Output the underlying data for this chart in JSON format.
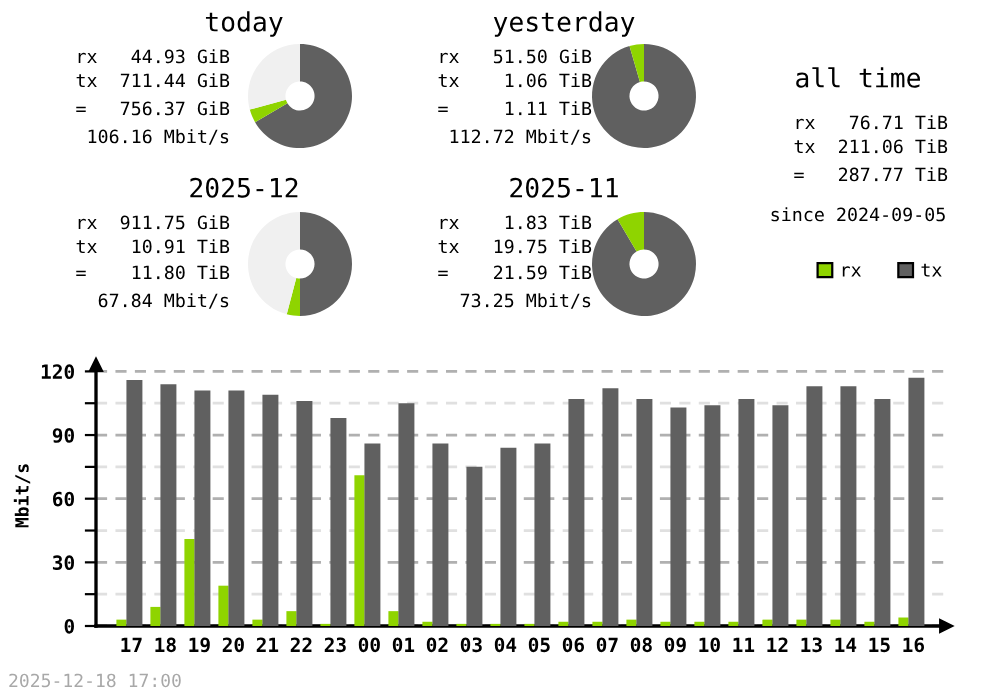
{
  "chart_data": [
    {
      "type": "donut",
      "title": "today",
      "categories": [
        null,
        null,
        null
      ],
      "values": [
        66.6,
        4.2,
        29.2
      ],
      "colors": [
        "#606060",
        "#8fd400",
        "#f0f0f0"
      ],
      "annotations": [
        "rx 44.93 GiB",
        "tx 711.44 GiB",
        "= 756.37 GiB",
        "106.16 Mbit/s"
      ]
    },
    {
      "type": "donut",
      "title": "yesterday",
      "categories": [
        null,
        null,
        null
      ],
      "values": [
        95.5,
        4.5,
        0
      ],
      "colors": [
        "#606060",
        "#8fd400",
        "#f0f0f0"
      ],
      "annotations": [
        "rx 51.50 GiB",
        "tx 1.06 TiB",
        "= 1.11 TiB",
        "112.72 Mbit/s"
      ]
    },
    {
      "type": "other",
      "title": "all time",
      "annotations": [
        "rx 76.71 TiB",
        "tx 211.06 TiB",
        "= 287.77 TiB",
        "since 2024-09-05"
      ]
    },
    {
      "type": "donut",
      "title": "2025-12",
      "categories": [
        null,
        null,
        null
      ],
      "values": [
        50.0,
        4.1,
        45.9
      ],
      "colors": [
        "#606060",
        "#8fd400",
        "#f0f0f0"
      ],
      "annotations": [
        "rx 911.75 GiB",
        "tx 10.91 TiB",
        "= 11.80 TiB",
        "67.84 Mbit/s"
      ]
    },
    {
      "type": "donut",
      "title": "2025-11",
      "categories": [
        null,
        null,
        null
      ],
      "values": [
        91.5,
        8.5,
        0
      ],
      "colors": [
        "#606060",
        "#8fd400",
        "#f0f0f0"
      ],
      "annotations": [
        "rx 1.83 TiB",
        "tx 19.75 TiB",
        "= 21.59 TiB",
        "73.25 Mbit/s"
      ]
    },
    {
      "type": "bar",
      "ylabel": "Mbit/s",
      "categories": [
        "17",
        "18",
        "19",
        "20",
        "21",
        "22",
        "23",
        "00",
        "01",
        "02",
        "03",
        "04",
        "05",
        "06",
        "07",
        "08",
        "09",
        "10",
        "11",
        "12",
        "13",
        "14",
        "15",
        "16"
      ],
      "series": [
        {
          "name": "rx",
          "color": "#8fd400",
          "values": [
            3,
            9,
            41,
            19,
            3,
            7,
            1,
            71,
            7,
            2,
            1,
            1,
            1,
            2,
            2,
            3,
            2,
            2,
            2,
            3,
            3,
            3,
            2,
            4
          ]
        },
        {
          "name": "tx",
          "color": "#606060",
          "values": [
            116,
            114,
            111,
            111,
            109,
            106,
            98,
            86,
            105,
            86,
            75,
            84,
            86,
            107,
            112,
            107,
            103,
            104,
            107,
            104,
            113,
            113,
            107,
            117
          ]
        }
      ],
      "ylim": [
        0,
        123
      ],
      "yticks": [
        0,
        {
          "value": 15,
          "label": null
        },
        30,
        {
          "value": 45,
          "label": null
        },
        60,
        {
          "value": 75,
          "label": null
        },
        90,
        {
          "value": 105,
          "label": null
        },
        120
      ],
      "grid": "y",
      "legend": "top right",
      "annotations": [
        "2025-12-18 17:00"
      ]
    }
  ]
}
